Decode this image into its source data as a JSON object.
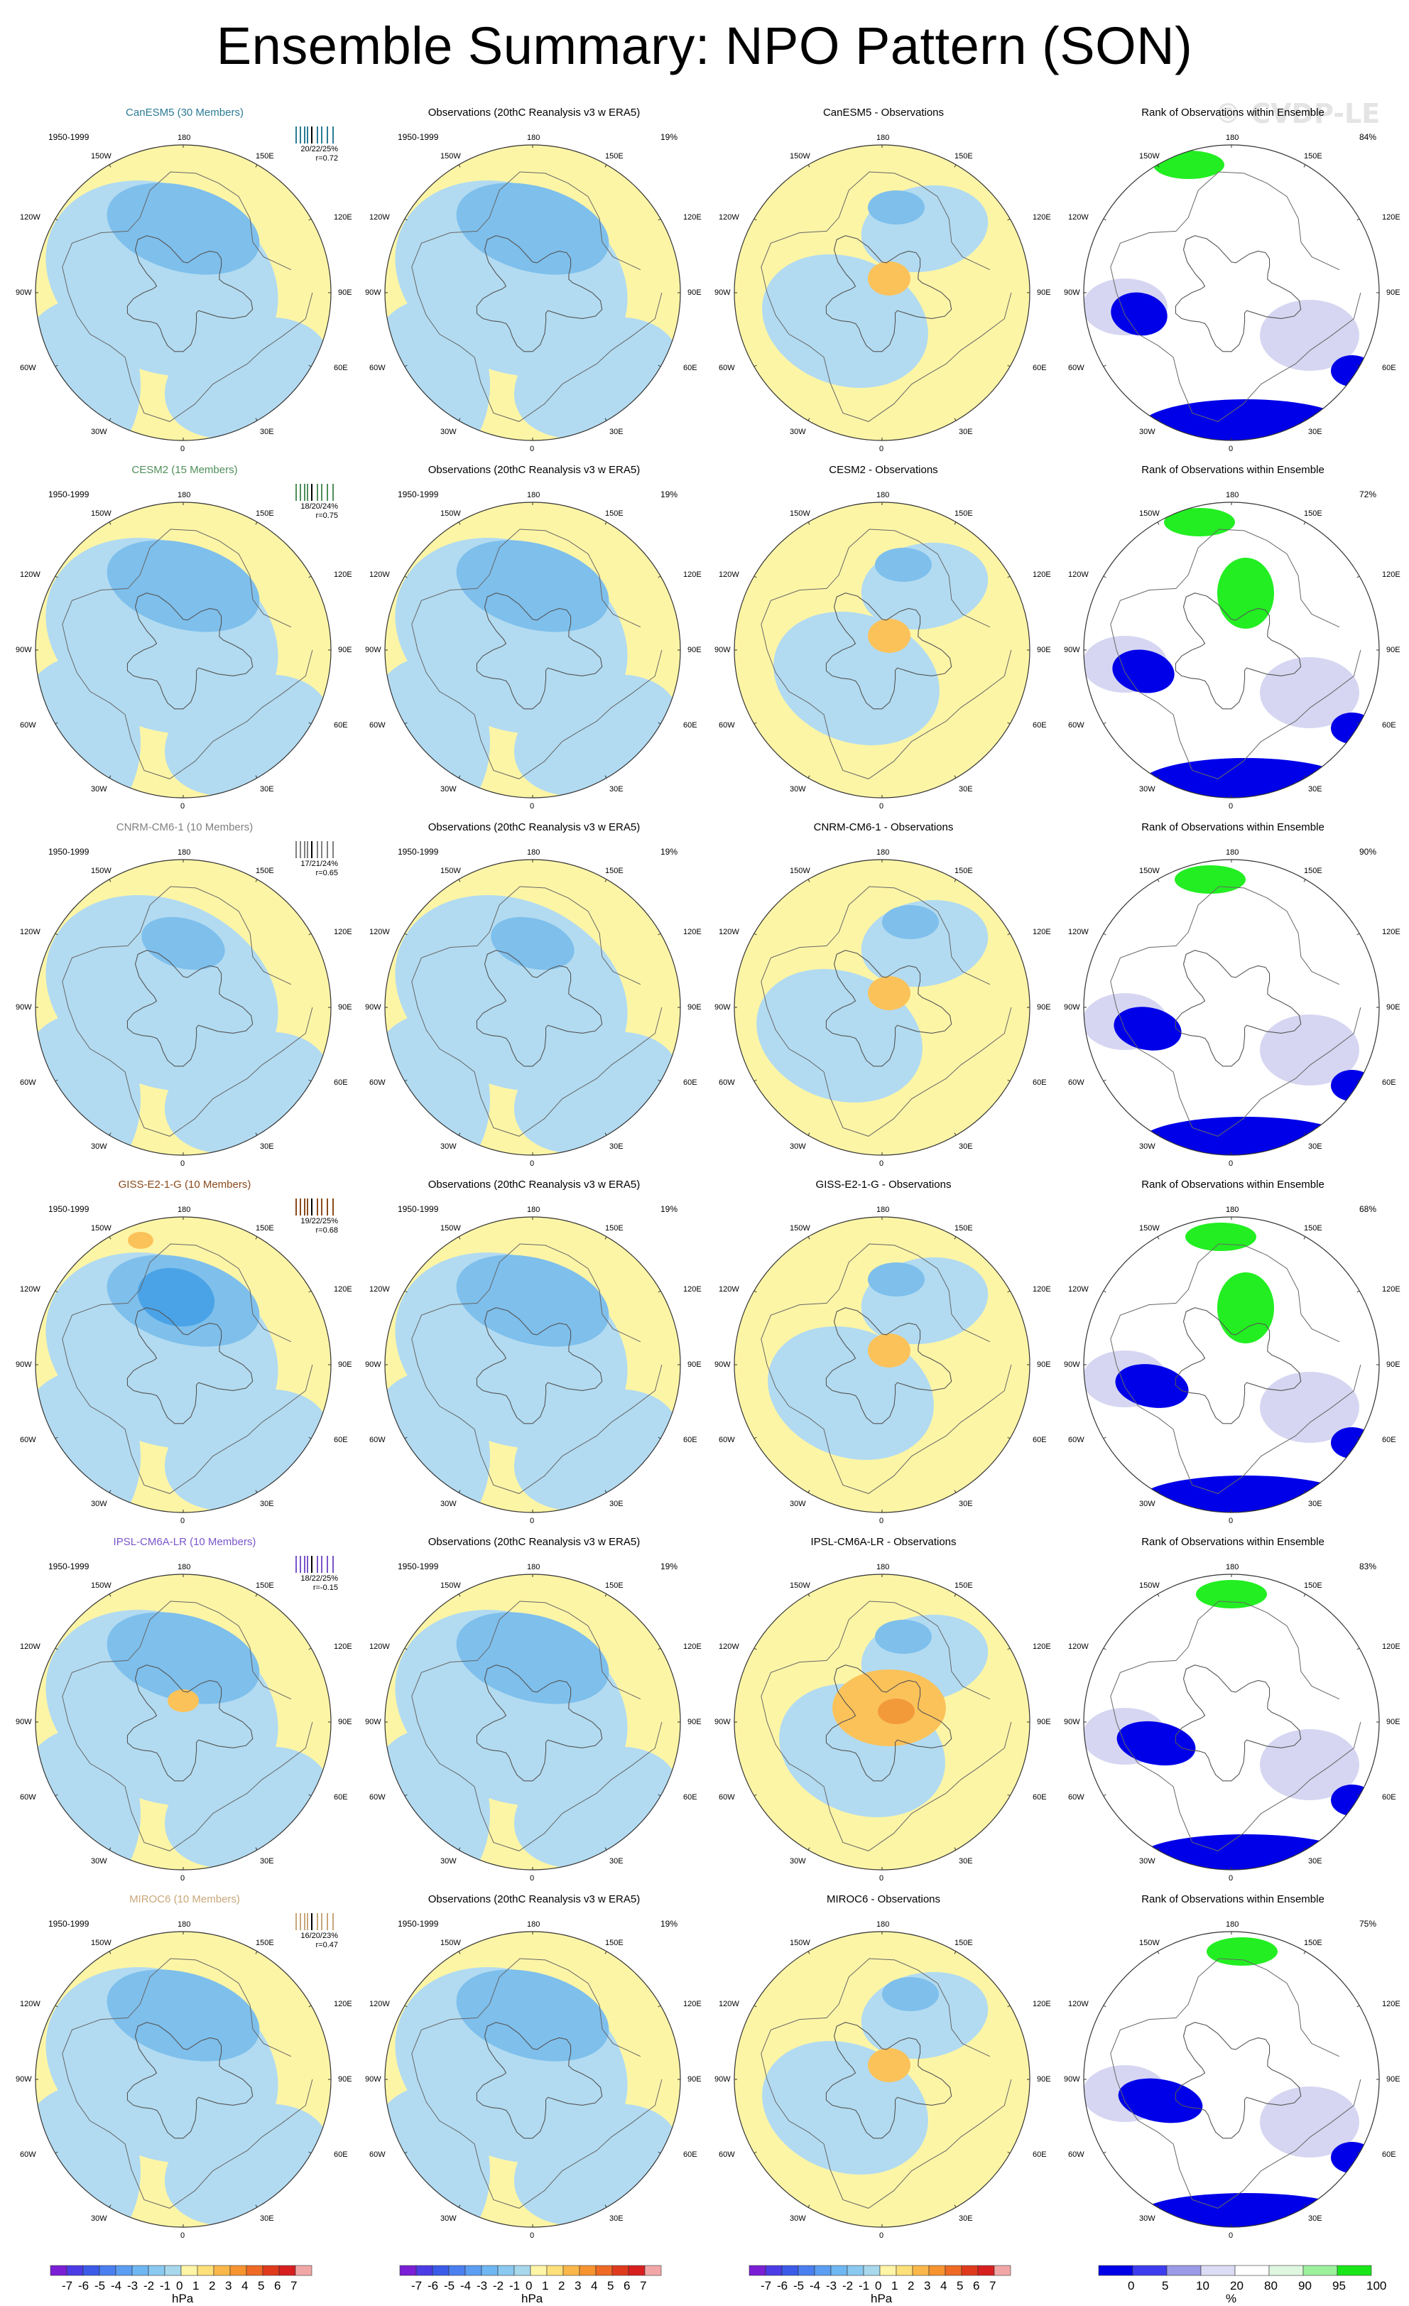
{
  "title": "Ensemble Summary: NPO Pattern (SON)",
  "watermark": "© CVDP-LE",
  "period": "1950-1999",
  "obs_title": "Observations (20thC Reanalysis v3 w ERA5)",
  "obs_pct": "19%",
  "rank_title": "Rank of Observations within Ensemble",
  "lon_labels": {
    "top": "180",
    "bottom": "0",
    "tl": "150W",
    "tr": "150E",
    "ul": "120W",
    "ur": "120E",
    "l": "90W",
    "r": "90E",
    "ll": "60W",
    "lr": "60E",
    "bl": "30W",
    "br": "30E"
  },
  "rows": [
    {
      "model_title": "CanESM5 (30 Members)",
      "model_color": "#2a7b96",
      "stats": "20/22/25%",
      "r": "r=0.72",
      "diff_title": "CanESM5 - Observations",
      "rank_pct": "84%"
    },
    {
      "model_title": "CESM2 (15 Members)",
      "model_color": "#4f8f5a",
      "stats": "18/20/24%",
      "r": "r=0.75",
      "diff_title": "CESM2 - Observations",
      "rank_pct": "72%"
    },
    {
      "model_title": "CNRM-CM6-1 (10 Members)",
      "model_color": "#808080",
      "stats": "17/21/24%",
      "r": "r=0.65",
      "diff_title": "CNRM-CM6-1 - Observations",
      "rank_pct": "90%"
    },
    {
      "model_title": "GISS-E2-1-G (10 Members)",
      "model_color": "#8b4a1c",
      "stats": "19/22/25%",
      "r": "r=0.68",
      "diff_title": "GISS-E2-1-G - Observations",
      "rank_pct": "68%"
    },
    {
      "model_title": "IPSL-CM6A-LR (10 Members)",
      "model_color": "#7a55c9",
      "stats": "18/22/25%",
      "r": "r=-0.15",
      "diff_title": "IPSL-CM6A-LR - Observations",
      "rank_pct": "83%"
    },
    {
      "model_title": "MIROC6 (10 Members)",
      "model_color": "#c9a77a",
      "stats": "16/20/23%",
      "r": "r=0.47",
      "diff_title": "MIROC6 - Observations",
      "rank_pct": "75%"
    }
  ],
  "colorbar_hpa": {
    "labels": [
      "-7",
      "-6",
      "-5",
      "-4",
      "-3",
      "-2",
      "-1",
      "0",
      "1",
      "2",
      "3",
      "4",
      "5",
      "6",
      "7"
    ],
    "unit": "hPa",
    "colors": [
      "#7a1fd6",
      "#4b3ce6",
      "#3b5be8",
      "#4a7ff0",
      "#5b9ef2",
      "#6fb7f2",
      "#8ac9f0",
      "#a8d8ec",
      "#fff5a6",
      "#fde07a",
      "#fbb84a",
      "#f79430",
      "#ef6a24",
      "#e03a1c",
      "#d81f1f",
      "#f2a7a7"
    ]
  },
  "colorbar_rank": {
    "labels": [
      "0",
      "5",
      "10",
      "20",
      "80",
      "90",
      "95",
      "100"
    ],
    "unit": "%",
    "colors": [
      "#0000e8",
      "#3d3df0",
      "#9a9ae6",
      "#dcdcf4",
      "#ffffff",
      "#dff7df",
      "#9cf09c",
      "#19e619"
    ]
  },
  "palette": {
    "ocean_blue": "#b2dbf1",
    "pale_yellow": "#fdf5a6",
    "mid_blue": "#7ebfec",
    "deep_blue": "#4aa3e6",
    "orange": "#fbc25a",
    "rank_blue": "#0000e8",
    "rank_light": "#d6d6f2",
    "rank_green": "#22ee22"
  }
}
